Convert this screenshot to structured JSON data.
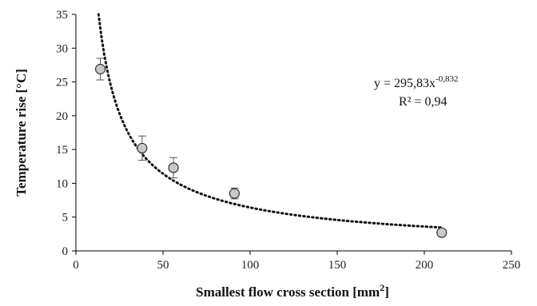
{
  "chart_data": {
    "type": "scatter",
    "title": "",
    "xlabel": "Smallest flow cross section [mm",
    "xlabel_sup": "2",
    "xlabel_end": "]",
    "ylabel": "Temperature rise [°C]",
    "xlim": [
      0,
      250
    ],
    "ylim": [
      0,
      35
    ],
    "x_ticks": [
      "0",
      "50",
      "100",
      "150",
      "200",
      "250"
    ],
    "y_ticks": [
      "0",
      "5",
      "10",
      "15",
      "20",
      "25",
      "30",
      "35"
    ],
    "grid": false,
    "legend": "none",
    "series": [
      {
        "marker": "circle",
        "color": "#c8c8c8",
        "points": [
          {
            "x": 14,
            "y": 26.9,
            "err": 1.6
          },
          {
            "x": 38,
            "y": 15.2,
            "err": 1.8
          },
          {
            "x": 56,
            "y": 12.3,
            "err": 1.5
          },
          {
            "x": 91,
            "y": 8.5,
            "err": 0.8
          },
          {
            "x": 210,
            "y": 2.7,
            "err": 0.2
          }
        ]
      }
    ],
    "trendline": {
      "type": "power",
      "a": 295.83,
      "b": -0.832,
      "x_range": [
        13,
        210
      ],
      "style": "dotted",
      "equation_prefix": "y = 295,83x",
      "equation_exponent": "-0,832",
      "r2_text": "R² = 0,94"
    }
  }
}
